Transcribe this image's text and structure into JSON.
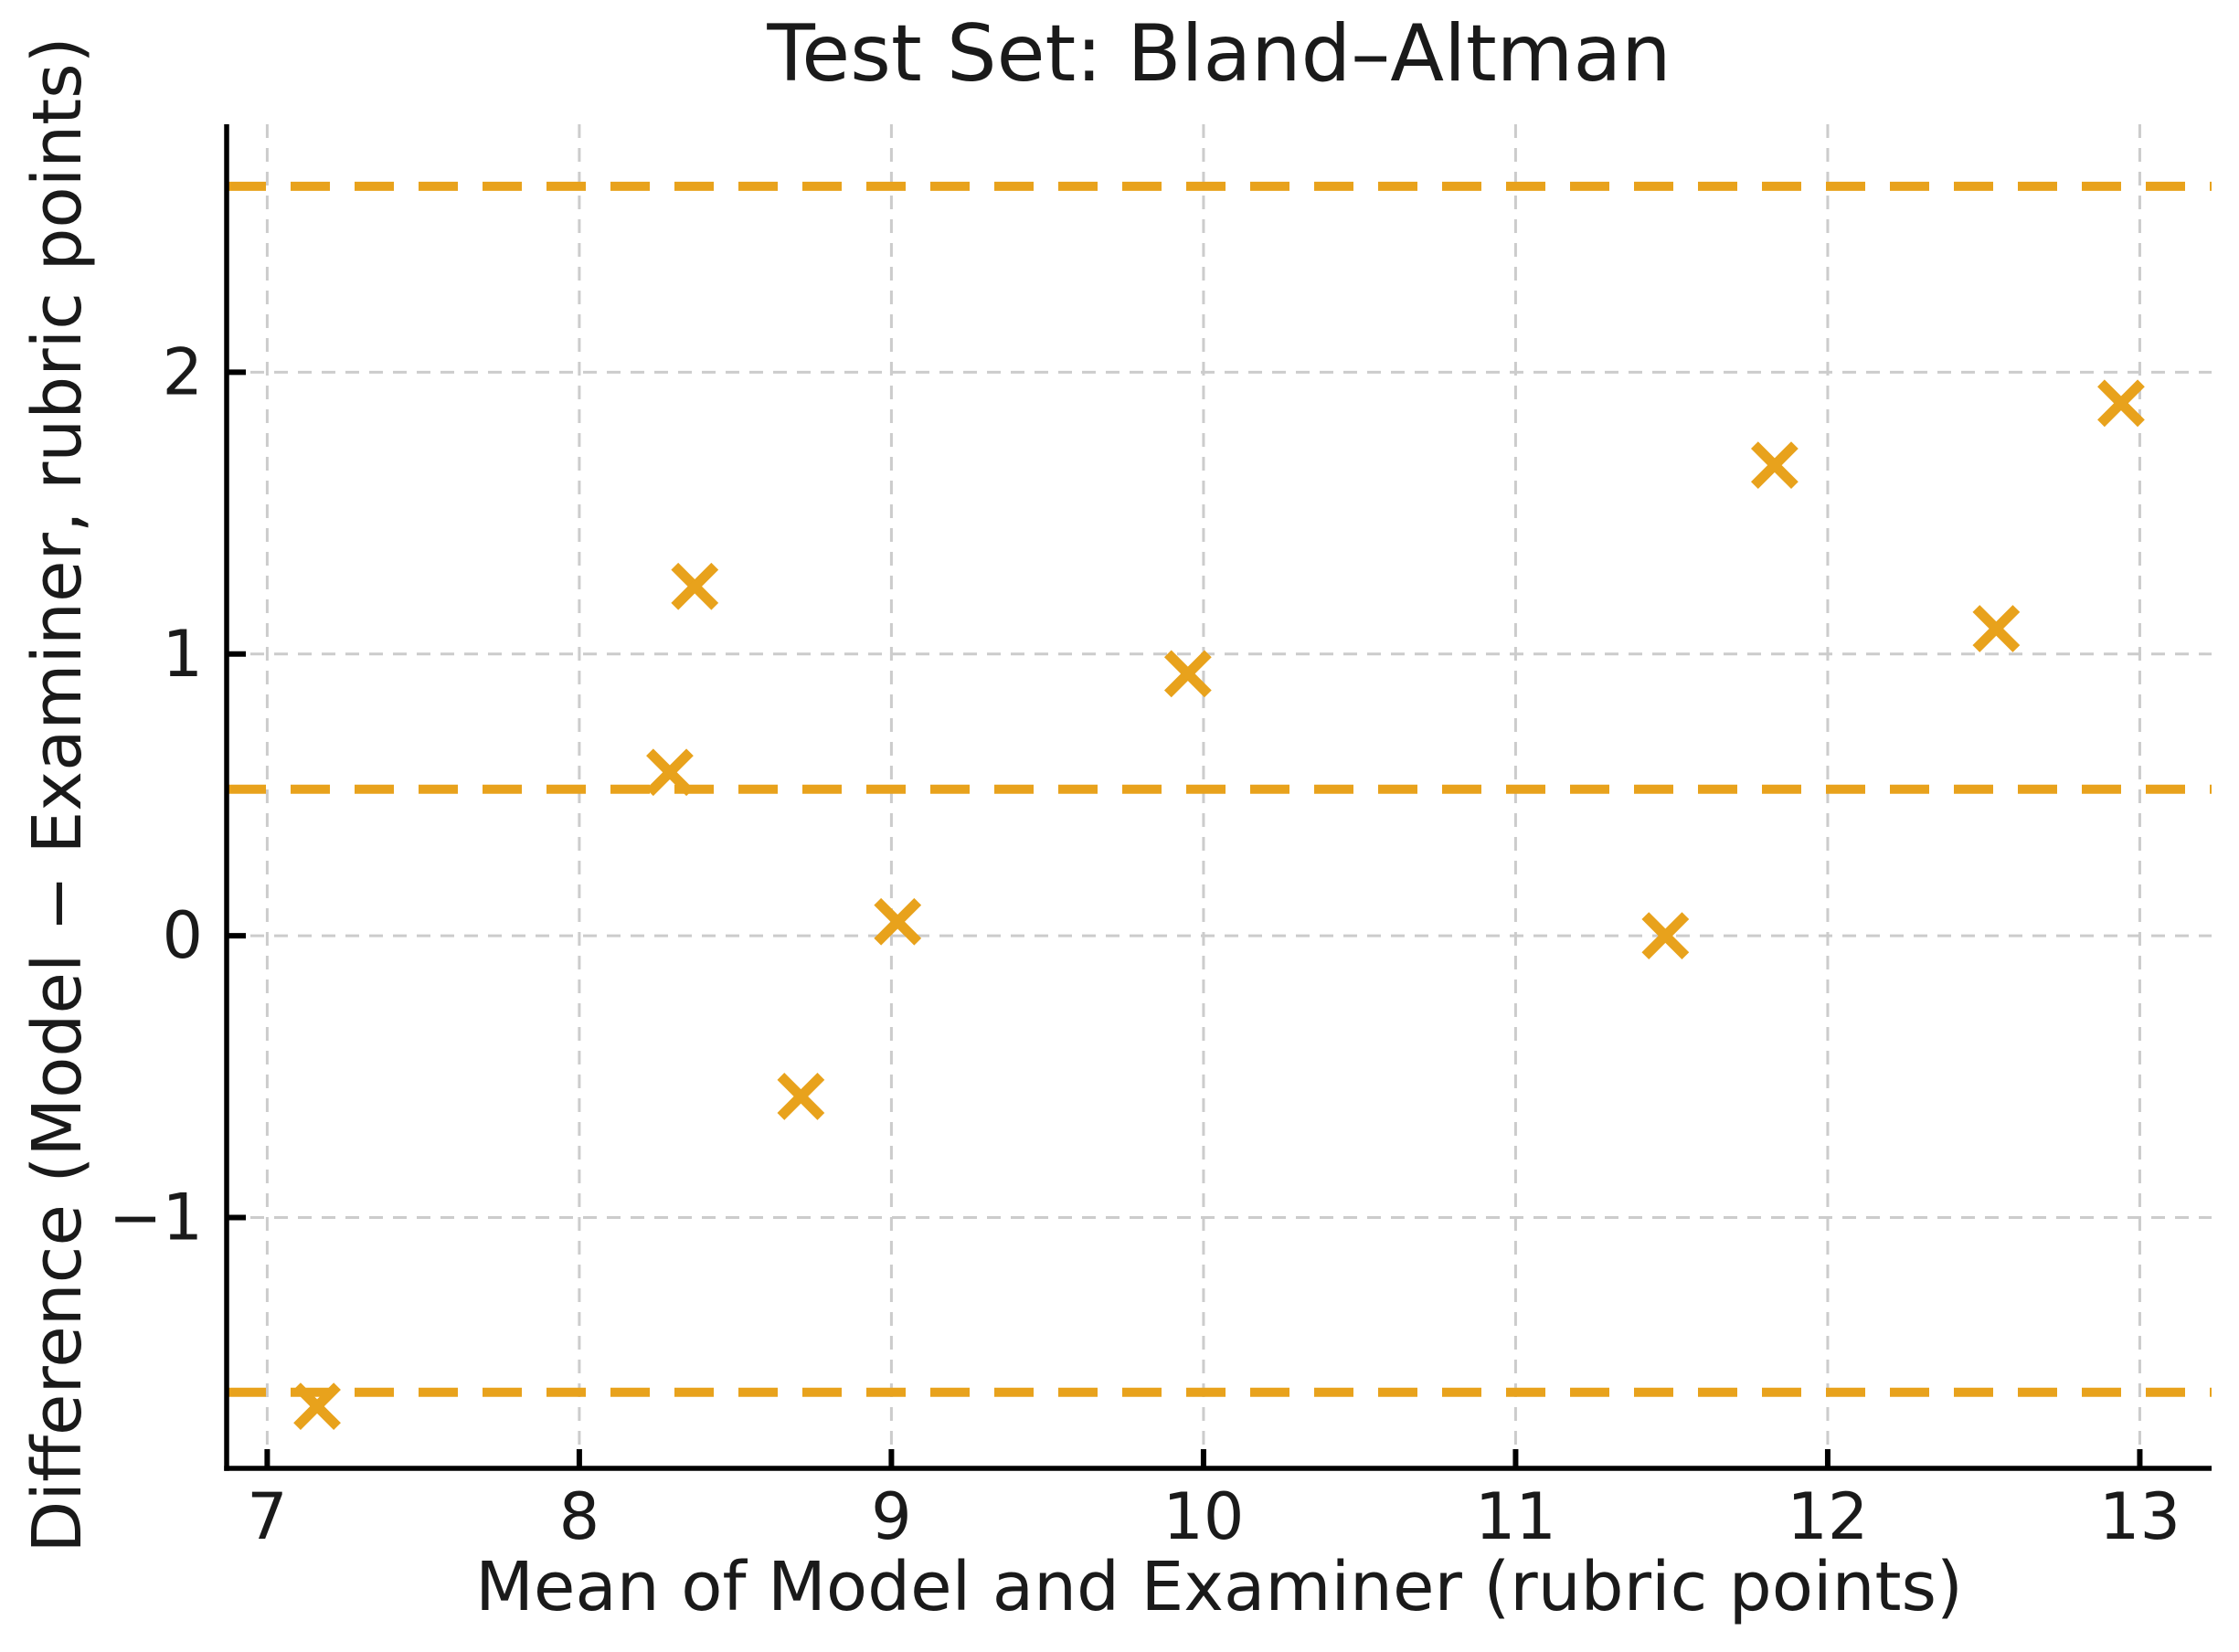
{
  "chart_data": {
    "type": "scatter",
    "title": "Test Set: Bland–Altman",
    "xlabel": "Mean of Model and Examiner (rubric points)",
    "ylabel": "Difference (Model − Examiner, rubric points)",
    "xlim": [
      6.87,
      13.23
    ],
    "ylim": [
      -1.89,
      2.88
    ],
    "xticks": [
      7,
      8,
      9,
      10,
      11,
      12,
      13
    ],
    "yticks": [
      -1,
      0,
      1,
      2
    ],
    "grid": true,
    "grid_style": "dashed",
    "legend": "none",
    "marker": "x",
    "marker_color": "#E8A21C",
    "grid_color": "#cccccc",
    "axis_color": "#000000",
    "points": [
      {
        "x": 7.16,
        "y": -1.67
      },
      {
        "x": 8.29,
        "y": 0.58
      },
      {
        "x": 8.37,
        "y": 1.24
      },
      {
        "x": 8.71,
        "y": -0.57
      },
      {
        "x": 9.02,
        "y": 0.05
      },
      {
        "x": 9.95,
        "y": 0.93
      },
      {
        "x": 11.48,
        "y": 0.0
      },
      {
        "x": 11.83,
        "y": 1.67
      },
      {
        "x": 12.54,
        "y": 1.09
      },
      {
        "x": 12.94,
        "y": 1.89
      }
    ],
    "reference_lines": [
      {
        "name": "upper-loa",
        "y": 2.66,
        "style": "dashed",
        "color": "#E8A21C"
      },
      {
        "name": "mean-difference",
        "y": 0.52,
        "style": "dashed",
        "color": "#E8A21C"
      },
      {
        "name": "lower-loa",
        "y": -1.62,
        "style": "dashed",
        "color": "#E8A21C"
      }
    ]
  }
}
